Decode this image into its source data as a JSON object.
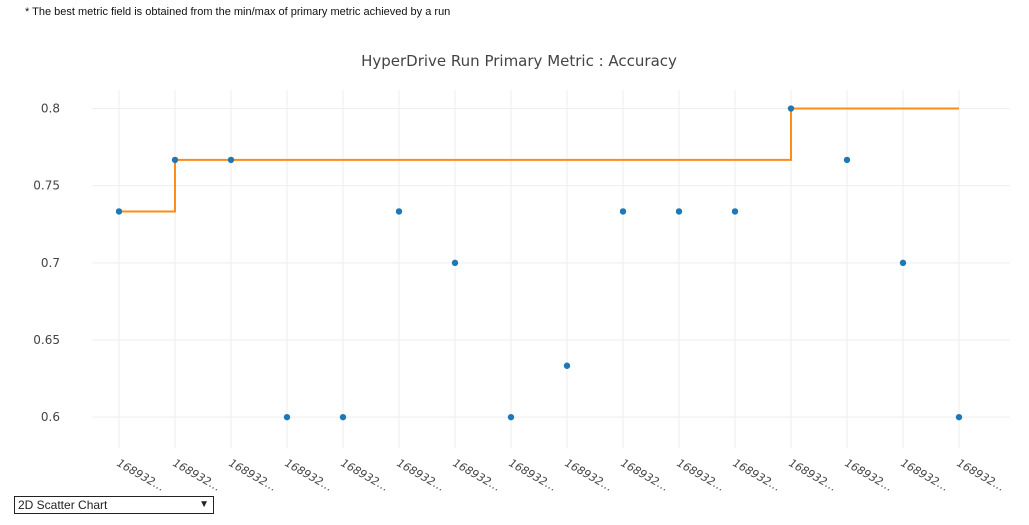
{
  "note": "* The best metric field is obtained from the min/max of primary metric achieved by a run",
  "chart_selector": {
    "selected": "2D Scatter Chart",
    "arrow_icon": "chevron-down-icon"
  },
  "colors": {
    "points": "#1f77b4",
    "best_line": "#ff8c1a",
    "grid": "#eeeeee"
  },
  "chart_data": {
    "type": "scatter",
    "title": "HyperDrive Run Primary Metric : Accuracy",
    "ylim": [
      0.58,
      0.812
    ],
    "yticks": [
      0.6,
      0.65,
      0.7,
      0.75,
      0.8
    ],
    "ytick_labels": [
      "0.6",
      "0.65",
      "0.7",
      "0.75",
      "0.8"
    ],
    "categories": [
      "168932…",
      "168932…",
      "168932…",
      "168932…",
      "168932…",
      "168932…",
      "168932…",
      "168932…",
      "168932…",
      "168932…",
      "168932…",
      "168932…",
      "168932…",
      "168932…",
      "168932…",
      "168932…"
    ],
    "grid": true,
    "series": [
      {
        "type": "scatter",
        "values": [
          0.7333,
          0.7667,
          0.7667,
          0.6,
          0.6,
          0.7333,
          0.7,
          0.6,
          0.6333,
          0.7333,
          0.7333,
          0.7333,
          0.8,
          0.7667,
          0.7,
          0.6
        ]
      },
      {
        "type": "step",
        "values": [
          0.7333,
          0.7667,
          0.7667,
          0.7667,
          0.7667,
          0.7667,
          0.7667,
          0.7667,
          0.7667,
          0.7667,
          0.7667,
          0.7667,
          0.8,
          0.8,
          0.8,
          0.8
        ]
      }
    ]
  }
}
